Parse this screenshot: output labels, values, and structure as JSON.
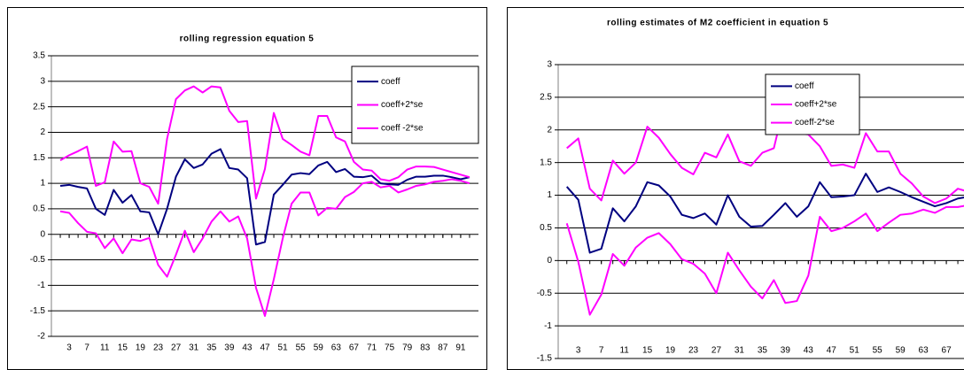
{
  "chart_data": [
    {
      "type": "line",
      "title": "rolling regression equation 5",
      "x": [
        1,
        3,
        5,
        7,
        9,
        11,
        13,
        15,
        17,
        19,
        21,
        23,
        25,
        27,
        29,
        31,
        33,
        35,
        37,
        39,
        41,
        43,
        45,
        47,
        49,
        51,
        53,
        55,
        57,
        59,
        61,
        63,
        65,
        67,
        69,
        71,
        73,
        75,
        77,
        79,
        81,
        83,
        85,
        87,
        89,
        91,
        93
      ],
      "xlim": [
        -1,
        95
      ],
      "xticks": [
        3,
        7,
        11,
        15,
        19,
        23,
        27,
        31,
        35,
        39,
        43,
        47,
        51,
        55,
        59,
        63,
        67,
        71,
        75,
        79,
        83,
        87,
        91
      ],
      "ylim": [
        -2,
        3.5
      ],
      "yticks": [
        -2,
        -1.5,
        -1,
        -0.5,
        0,
        0.5,
        1,
        1.5,
        2,
        2.5,
        3,
        3.5
      ],
      "grid": true,
      "legend": "upper right",
      "series": [
        {
          "name": "coeff",
          "color": "#000080",
          "values": [
            0.95,
            0.97,
            0.93,
            0.9,
            0.5,
            0.38,
            0.87,
            0.62,
            0.77,
            0.45,
            0.43,
            0.0,
            0.5,
            1.13,
            1.47,
            1.3,
            1.37,
            1.58,
            1.67,
            1.3,
            1.27,
            1.1,
            -0.2,
            -0.15,
            0.78,
            0.97,
            1.17,
            1.2,
            1.18,
            1.35,
            1.42,
            1.22,
            1.28,
            1.13,
            1.12,
            1.15,
            1.0,
            0.98,
            0.97,
            1.07,
            1.13,
            1.13,
            1.15,
            1.15,
            1.12,
            1.08,
            1.12
          ]
        },
        {
          "name": "coeff+2*se",
          "color": "#ff00ff",
          "values": [
            1.45,
            1.55,
            1.63,
            1.72,
            0.95,
            1.02,
            1.82,
            1.62,
            1.63,
            1.0,
            0.93,
            0.6,
            1.87,
            2.65,
            2.82,
            2.9,
            2.78,
            2.9,
            2.88,
            2.42,
            2.2,
            2.22,
            0.7,
            1.28,
            2.38,
            1.87,
            1.75,
            1.62,
            1.55,
            2.32,
            2.32,
            1.9,
            1.82,
            1.42,
            1.27,
            1.25,
            1.08,
            1.05,
            1.12,
            1.27,
            1.33,
            1.33,
            1.32,
            1.27,
            1.22,
            1.17,
            1.12
          ]
        },
        {
          "name": "coeff -2*se",
          "color": "#ff00ff",
          "values": [
            0.45,
            0.42,
            0.22,
            0.05,
            0.02,
            -0.27,
            -0.08,
            -0.37,
            -0.1,
            -0.13,
            -0.07,
            -0.6,
            -0.83,
            -0.4,
            0.07,
            -0.35,
            -0.08,
            0.25,
            0.45,
            0.25,
            0.35,
            -0.08,
            -1.05,
            -1.6,
            -0.88,
            -0.08,
            0.6,
            0.82,
            0.82,
            0.37,
            0.52,
            0.5,
            0.73,
            0.83,
            1.0,
            1.03,
            0.92,
            0.95,
            0.82,
            0.88,
            0.95,
            0.98,
            1.03,
            1.05,
            1.08,
            1.05,
            1.0
          ]
        }
      ]
    },
    {
      "type": "line",
      "title": "rolling estimates of M2 coefficient in equation 5",
      "x": [
        1,
        3,
        5,
        7,
        9,
        11,
        13,
        15,
        17,
        19,
        21,
        23,
        25,
        27,
        29,
        31,
        33,
        35,
        37,
        39,
        41,
        43,
        45,
        47,
        49,
        51,
        53,
        55,
        57,
        59,
        61,
        63,
        65,
        67,
        69,
        71
      ],
      "xlim": [
        -0.5,
        75
      ],
      "xticks": [
        3,
        7,
        11,
        15,
        19,
        23,
        27,
        31,
        35,
        39,
        43,
        47,
        51,
        55,
        59,
        63,
        67
      ],
      "ylim": [
        -1.5,
        3
      ],
      "yticks": [
        -1.5,
        -1,
        -0.5,
        0,
        0.5,
        1,
        1.5,
        2,
        2.5,
        3
      ],
      "grid": true,
      "legend": "upper right",
      "series": [
        {
          "name": "coeff",
          "color": "#000080",
          "values": [
            1.13,
            0.93,
            0.12,
            0.18,
            0.8,
            0.6,
            0.83,
            1.2,
            1.15,
            0.98,
            0.7,
            0.65,
            0.72,
            0.55,
            1.0,
            0.67,
            0.52,
            0.53,
            0.7,
            0.88,
            0.67,
            0.83,
            1.2,
            0.97,
            0.98,
            1.0,
            1.33,
            1.05,
            1.12,
            1.05,
            0.97,
            0.9,
            0.83,
            0.88,
            0.95,
            0.98
          ]
        },
        {
          "name": "coeff+2*se",
          "color": "#ff00ff",
          "values": [
            1.72,
            1.87,
            1.1,
            0.92,
            1.53,
            1.33,
            1.5,
            2.05,
            1.88,
            1.63,
            1.42,
            1.32,
            1.65,
            1.58,
            1.93,
            1.52,
            1.45,
            1.65,
            1.72,
            2.45,
            1.95,
            1.93,
            1.75,
            1.45,
            1.47,
            1.42,
            1.95,
            1.67,
            1.67,
            1.33,
            1.18,
            0.98,
            0.88,
            0.95,
            1.1,
            1.05
          ]
        },
        {
          "name": "coeff-2*se",
          "color": "#ff00ff",
          "values": [
            0.57,
            -0.02,
            -0.83,
            -0.52,
            0.1,
            -0.08,
            0.2,
            0.35,
            0.42,
            0.25,
            0.02,
            -0.05,
            -0.2,
            -0.5,
            0.12,
            -0.15,
            -0.4,
            -0.58,
            -0.3,
            -0.65,
            -0.62,
            -0.23,
            0.67,
            0.45,
            0.5,
            0.6,
            0.72,
            0.45,
            0.58,
            0.7,
            0.72,
            0.78,
            0.73,
            0.82,
            0.82,
            0.85
          ]
        }
      ]
    }
  ]
}
